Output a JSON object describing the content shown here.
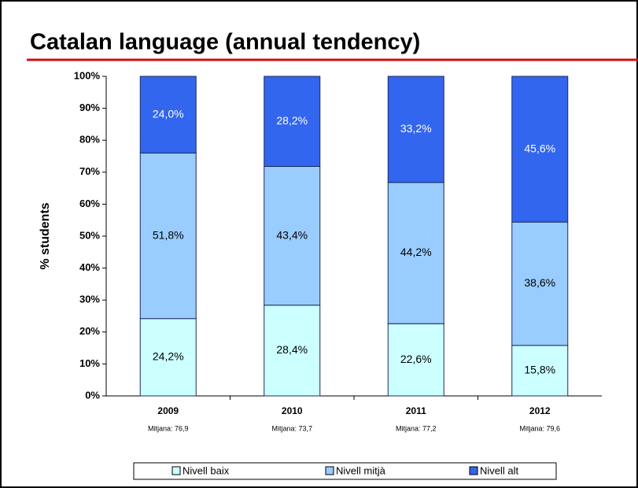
{
  "chart_data": {
    "type": "stacked-bar",
    "title": "Catalan language (annual tendency)",
    "y_label": "% students",
    "categories": [
      "2009",
      "2010",
      "2011",
      "2012"
    ],
    "sublabels": [
      "Mitjana: 76,9",
      "Mitjana: 73,7",
      "Mitjana: 77,2",
      "Mitjana: 79,6"
    ],
    "series": [
      {
        "name": "Nivell baix",
        "color": "#ccffff",
        "values": [
          24.2,
          28.4,
          22.6,
          15.8
        ],
        "value_labels": [
          "24,2%",
          "28,4%",
          "22,6%",
          "15,8%"
        ]
      },
      {
        "name": "Nivell mitjà",
        "color": "#99ccff",
        "values": [
          51.8,
          43.4,
          44.2,
          38.6
        ],
        "value_labels": [
          "51,8%",
          "43,4%",
          "44,2%",
          "38,6%"
        ]
      },
      {
        "name": "Nivell alt",
        "color": "#3366ee",
        "values": [
          24.0,
          28.2,
          33.2,
          45.6
        ],
        "value_labels": [
          "24,0%",
          "28,2%",
          "33,2%",
          "45,6%"
        ]
      }
    ],
    "ylim": [
      0,
      100
    ],
    "yticks": [
      {
        "value": 0,
        "label": "0%"
      },
      {
        "value": 10,
        "label": "10%"
      },
      {
        "value": 20,
        "label": "20%"
      },
      {
        "value": 30,
        "label": "30%"
      },
      {
        "value": 40,
        "label": "40%"
      },
      {
        "value": 50,
        "label": "50%"
      },
      {
        "value": 60,
        "label": "60%"
      },
      {
        "value": 70,
        "label": "70%"
      },
      {
        "value": 80,
        "label": "80%"
      },
      {
        "value": 90,
        "label": "90%"
      },
      {
        "value": 100,
        "label": "100%"
      }
    ],
    "legend": "bottom"
  }
}
